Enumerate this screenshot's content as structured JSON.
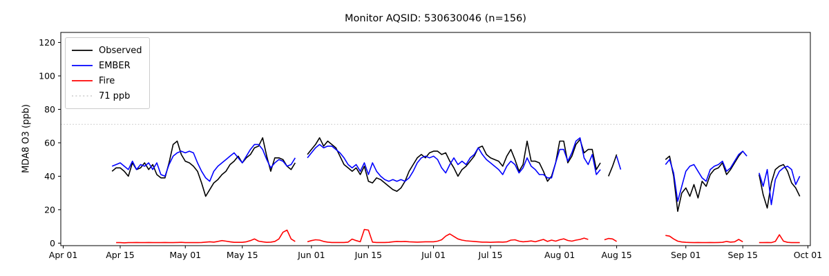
{
  "chart_data": {
    "type": "line",
    "title": "Monitor AQSID: 530630046 (n=156)",
    "ylabel": "MDA8 O3 (ppb)",
    "xlabel": "",
    "grid": false,
    "x_axis_days_from_apr01": true,
    "xlim_days": [
      -0.6,
      183.6
    ],
    "ylim": [
      -1.5,
      126
    ],
    "x_ticks": [
      {
        "day": 0,
        "label": "Apr 01"
      },
      {
        "day": 14,
        "label": "Apr 15"
      },
      {
        "day": 30,
        "label": "May 01"
      },
      {
        "day": 44,
        "label": "May 15"
      },
      {
        "day": 61,
        "label": "Jun 01"
      },
      {
        "day": 75,
        "label": "Jun 15"
      },
      {
        "day": 91,
        "label": "Jul 01"
      },
      {
        "day": 105,
        "label": "Jul 15"
      },
      {
        "day": 122,
        "label": "Aug 01"
      },
      {
        "day": 136,
        "label": "Aug 15"
      },
      {
        "day": 153,
        "label": "Sep 01"
      },
      {
        "day": 167,
        "label": "Sep 15"
      },
      {
        "day": 183,
        "label": "Oct 01"
      }
    ],
    "y_ticks": [
      0,
      20,
      40,
      60,
      80,
      100,
      120
    ],
    "threshold": {
      "value": 71,
      "label": "71 ppb",
      "color": "#d3d3d3",
      "dash": "dotted"
    },
    "legend": {
      "position": "upper left",
      "entries": [
        {
          "label": "Observed",
          "color": "#000000",
          "dash": "solid"
        },
        {
          "label": "EMBER",
          "color": "#0000ff",
          "dash": "solid"
        },
        {
          "label": "Fire",
          "color": "#ff0000",
          "dash": "solid"
        },
        {
          "label": "71 ppb",
          "color": "#d3d3d3",
          "dash": "dotted"
        }
      ]
    },
    "series": [
      {
        "name": "Observed",
        "color": "#000000",
        "segments": [
          {
            "start_day": 12,
            "values": [
              43,
              45,
              45,
              43,
              40,
              48,
              44,
              45,
              48,
              44,
              47,
              41,
              39,
              39,
              48,
              59,
              61,
              53,
              49,
              48,
              46,
              43,
              36,
              28,
              32,
              36,
              38,
              41,
              43,
              47,
              49,
              52,
              48,
              51,
              53,
              57,
              58,
              63,
              52,
              43,
              51,
              51,
              50,
              46,
              44,
              48
            ]
          },
          {
            "start_day": 60,
            "values": [
              53,
              56,
              59,
              63,
              58,
              61,
              59,
              57,
              52,
              47,
              45,
              43,
              45,
              41,
              46,
              37,
              36,
              39,
              38,
              36,
              34,
              32,
              31,
              33,
              37,
              43,
              47,
              51,
              53,
              51,
              54,
              55,
              55,
              53,
              54,
              49,
              45,
              40,
              44,
              46,
              49,
              52,
              57,
              58,
              53,
              51,
              50,
              49,
              46,
              52,
              56,
              50,
              43,
              47,
              61,
              49,
              49,
              48,
              43,
              37,
              40,
              48,
              61,
              61,
              48,
              52,
              59,
              62,
              54,
              56,
              56,
              44,
              48
            ]
          },
          {
            "start_day": 134,
            "values": [
              40,
              46,
              53
            ]
          },
          {
            "start_day": 148,
            "values": [
              50,
              52,
              40,
              19,
              30,
              33,
              28,
              35,
              27,
              37,
              34,
              41,
              44,
              45,
              48,
              41,
              44,
              48,
              52,
              55
            ]
          },
          {
            "start_day": 171,
            "values": [
              41,
              29,
              21,
              36,
              44,
              46,
              47,
              43,
              36,
              33,
              28
            ]
          }
        ]
      },
      {
        "name": "EMBER",
        "color": "#0000ff",
        "segments": [
          {
            "start_day": 12,
            "values": [
              46,
              47,
              48,
              46,
              44,
              49,
              44,
              47,
              46,
              48,
              44,
              48,
              41,
              40,
              47,
              52,
              54,
              55,
              54,
              55,
              54,
              48,
              43,
              39,
              37,
              43,
              46,
              48,
              50,
              52,
              54,
              51,
              48,
              52,
              56,
              59,
              59,
              56,
              50,
              45,
              48,
              50,
              49,
              46,
              47,
              51
            ]
          },
          {
            "start_day": 60,
            "values": [
              51,
              54,
              57,
              59,
              57,
              58,
              58,
              56,
              54,
              51,
              47,
              45,
              47,
              43,
              48,
              41,
              48,
              43,
              40,
              38,
              37,
              38,
              37,
              38,
              37,
              39,
              43,
              48,
              51,
              52,
              51,
              52,
              50,
              45,
              42,
              47,
              51,
              47,
              49,
              47,
              51,
              53,
              57,
              53,
              50,
              48,
              46,
              44,
              41,
              46,
              49,
              47,
              42,
              45,
              51,
              46,
              44,
              41,
              41,
              39,
              39,
              48,
              56,
              56,
              49,
              54,
              61,
              63,
              51,
              47,
              53,
              41,
              44
            ]
          },
          {
            "start_day": 136,
            "values": [
              52,
              44
            ]
          },
          {
            "start_day": 148,
            "values": [
              47,
              50,
              42,
              25,
              34,
              43,
              46,
              47,
              43,
              39,
              37,
              44,
              46,
              47,
              49,
              43,
              45,
              49,
              53,
              55,
              52
            ]
          },
          {
            "start_day": 171,
            "values": [
              42,
              34,
              44,
              23,
              38,
              43,
              45,
              46,
              44,
              35,
              40
            ]
          }
        ]
      },
      {
        "name": "Fire",
        "color": "#ff0000",
        "segments": [
          {
            "start_day": 13,
            "values": [
              0.3,
              0.3,
              0.2,
              0.3,
              0.3,
              0.4,
              0.3,
              0.3,
              0.4,
              0.3,
              0.3,
              0.3,
              0.4,
              0.3,
              0.3,
              0.4,
              0.5,
              0.3,
              0.3,
              0.3,
              0.3,
              0.4,
              0.6,
              0.8,
              0.6,
              1.0,
              1.5,
              1.2,
              0.8,
              0.5,
              0.5,
              0.5,
              0.8,
              1.5,
              2.5,
              1.2,
              0.8,
              0.5,
              0.6,
              1.0,
              2.5,
              6.5,
              7.8,
              2.5,
              1.0
            ]
          },
          {
            "start_day": 60,
            "values": [
              0.8,
              1.5,
              2.0,
              1.8,
              1.0,
              0.6,
              0.4,
              0.4,
              0.4,
              0.4,
              0.6,
              2.4,
              1.5,
              0.8,
              8.2,
              7.8,
              0.6,
              0.4,
              0.4,
              0.4,
              0.5,
              0.8,
              1.0,
              0.9,
              1.0,
              0.8,
              0.7,
              0.6,
              0.7,
              0.8,
              0.8,
              0.8,
              1.2,
              2.0,
              4.2,
              5.5,
              4.0,
              2.5,
              1.8,
              1.4,
              1.2,
              1.0,
              0.8,
              0.6,
              0.6,
              0.5,
              0.6,
              0.7,
              0.6,
              0.8,
              1.8,
              2.0,
              1.2,
              0.8,
              1.0,
              1.3,
              0.8,
              1.5,
              2.2,
              1.0,
              1.8,
              1.2,
              2.0,
              2.6,
              1.6,
              1.2,
              1.8,
              2.2,
              3.0,
              2.2
            ]
          },
          {
            "start_day": 133,
            "values": [
              2.0,
              2.8,
              2.5,
              1.0
            ]
          },
          {
            "start_day": 148,
            "values": [
              4.6,
              4.2,
              2.5,
              1.2,
              0.7,
              0.5,
              0.4,
              0.3,
              0.4,
              0.3,
              0.3,
              0.4,
              0.3,
              0.4,
              0.5,
              1.0,
              0.6,
              0.8,
              2.2,
              0.8
            ]
          },
          {
            "start_day": 171,
            "values": [
              0.3,
              0.3,
              0.4,
              0.3,
              1.0,
              5.0,
              1.2,
              0.5,
              0.3,
              0.3,
              0.3
            ]
          }
        ]
      }
    ]
  }
}
